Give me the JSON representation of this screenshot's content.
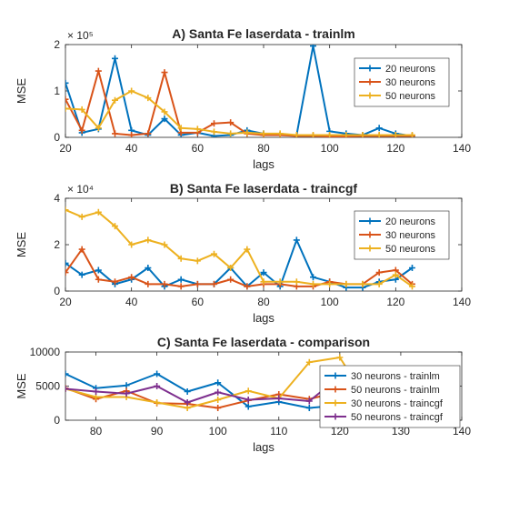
{
  "chart_data": [
    {
      "type": "line",
      "title": "A) Santa Fe laserdata - trainlm",
      "xlabel": "lags",
      "ylabel": "MSE",
      "exponent_label": "× 10⁵",
      "scale": 100000,
      "xlim": [
        20,
        140
      ],
      "ylim": [
        0,
        200000
      ],
      "xticks": [
        "20",
        "40",
        "60",
        "80",
        "100",
        "120",
        "140"
      ],
      "yticks": [
        "0",
        "1",
        "2"
      ],
      "legend_position": "top-right",
      "x": [
        20,
        25,
        30,
        35,
        40,
        45,
        50,
        55,
        60,
        65,
        70,
        75,
        80,
        85,
        90,
        95,
        100,
        105,
        110,
        115,
        120,
        125
      ],
      "series": [
        {
          "name": "20 neurons",
          "color": "#0072BD",
          "values": [
            117000,
            10000,
            18000,
            170000,
            15000,
            5000,
            40000,
            5000,
            10000,
            3000,
            5000,
            15000,
            8000,
            5000,
            5000,
            197000,
            13000,
            8000,
            5000,
            20000,
            8000,
            3000
          ]
        },
        {
          "name": "30 neurons",
          "color": "#D95319",
          "values": [
            82000,
            15000,
            143000,
            8000,
            5000,
            8000,
            140000,
            10000,
            10000,
            30000,
            32000,
            8000,
            5000,
            5000,
            3000,
            3000,
            2000,
            2000,
            3000,
            3000,
            3000,
            3000
          ]
        },
        {
          "name": "50 neurons",
          "color": "#EDB120",
          "values": [
            62000,
            60000,
            20000,
            80000,
            100000,
            85000,
            55000,
            20000,
            18000,
            12000,
            8000,
            10000,
            8000,
            8000,
            5000,
            5000,
            5000,
            5000,
            5000,
            5000,
            5000,
            5000
          ]
        }
      ]
    },
    {
      "type": "line",
      "title": "B) Santa Fe laserdata - traincgf",
      "xlabel": "lags",
      "ylabel": "MSE",
      "exponent_label": "× 10⁴",
      "scale": 10000,
      "xlim": [
        20,
        140
      ],
      "ylim": [
        0,
        40000
      ],
      "xticks": [
        "20",
        "40",
        "60",
        "80",
        "100",
        "120",
        "140"
      ],
      "yticks": [
        "0",
        "2",
        "4"
      ],
      "legend_position": "top-right",
      "x": [
        20,
        25,
        30,
        35,
        40,
        45,
        50,
        55,
        60,
        65,
        70,
        75,
        80,
        85,
        90,
        95,
        100,
        105,
        110,
        115,
        120,
        125
      ],
      "series": [
        {
          "name": "20 neurons",
          "color": "#0072BD",
          "values": [
            12000,
            7000,
            9000,
            3000,
            5000,
            10000,
            2000,
            5000,
            3000,
            3000,
            10000,
            2000,
            8000,
            2000,
            22000,
            6000,
            4000,
            1500,
            1500,
            4000,
            5000,
            10000
          ]
        },
        {
          "name": "30 neurons",
          "color": "#D95319",
          "values": [
            8000,
            18000,
            5000,
            4000,
            6000,
            3000,
            3000,
            2000,
            3000,
            3000,
            5000,
            2000,
            3000,
            3000,
            2000,
            2000,
            4000,
            3000,
            3000,
            8000,
            9000,
            3000
          ]
        },
        {
          "name": "50 neurons",
          "color": "#EDB120",
          "values": [
            35000,
            32000,
            34000,
            28000,
            20000,
            22000,
            20000,
            14000,
            13000,
            16000,
            10000,
            18000,
            4000,
            4000,
            4000,
            3000,
            3000,
            3000,
            3000,
            3000,
            7000,
            2000
          ]
        }
      ]
    },
    {
      "type": "line",
      "title": "C) Santa Fe laserdata - comparison",
      "xlabel": "lags",
      "ylabel": "MSE",
      "scale": 1,
      "xlim": [
        75,
        140
      ],
      "ylim": [
        0,
        10000
      ],
      "xticks": [
        "80",
        "90",
        "100",
        "110",
        "120",
        "130",
        "140"
      ],
      "yticks": [
        "0",
        "5000",
        "10000"
      ],
      "legend_position": "top-right",
      "x": [
        75,
        80,
        85,
        90,
        95,
        100,
        105,
        110,
        115,
        120,
        125
      ],
      "series": [
        {
          "name": "30 neurons - trainlm",
          "color": "#0072BD",
          "values": [
            6800,
            4700,
            5100,
            6800,
            4200,
            5500,
            2000,
            2700,
            1800,
            2200,
            4700
          ]
        },
        {
          "name": "50 neurons - trainlm",
          "color": "#D95319",
          "values": [
            4700,
            3100,
            4300,
            2500,
            2400,
            1800,
            2900,
            3800,
            3100,
            4200,
            3800
          ]
        },
        {
          "name": "30 neurons - traincgf",
          "color": "#EDB120",
          "values": [
            4600,
            3400,
            3400,
            2600,
            1800,
            3000,
            4300,
            3200,
            8500,
            9200,
            2200
          ]
        },
        {
          "name": "50 neurons - traincgf",
          "color": "#7E2F8E",
          "values": [
            4600,
            4200,
            3900,
            5000,
            2600,
            4100,
            3000,
            3200,
            2800,
            6400,
            2700
          ]
        }
      ]
    }
  ]
}
